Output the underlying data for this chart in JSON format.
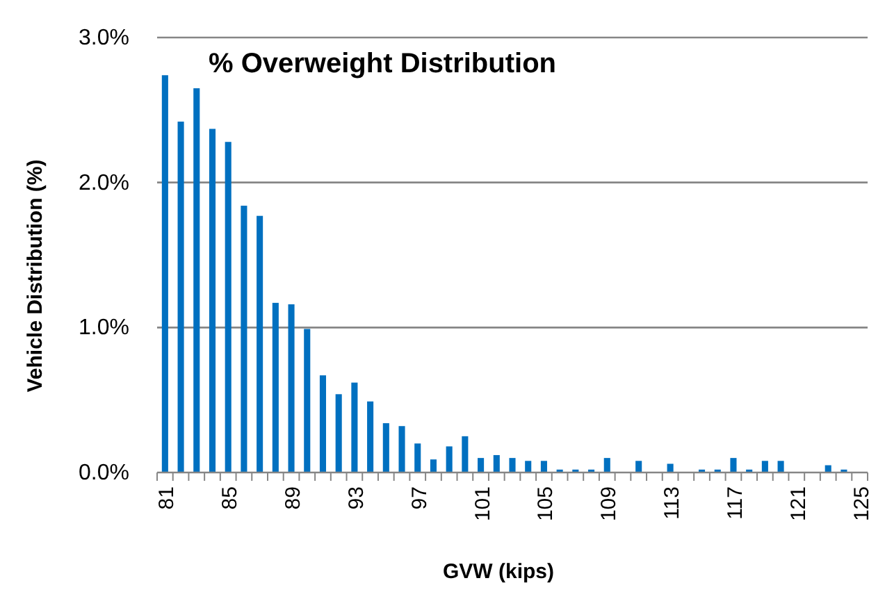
{
  "chart_data": {
    "type": "bar",
    "title": "% Overweight Distribution",
    "xlabel": "GVW (kips)",
    "ylabel": "Vehicle Distribution (%)",
    "categories": [
      "81",
      null,
      null,
      null,
      "85",
      null,
      null,
      null,
      "89",
      null,
      null,
      null,
      "93",
      null,
      null,
      null,
      "97",
      null,
      null,
      null,
      "101",
      null,
      null,
      null,
      "105",
      null,
      null,
      null,
      "109",
      null,
      null,
      null,
      "113",
      null,
      null,
      null,
      "117",
      null,
      null,
      null,
      "121",
      null,
      null,
      null,
      "125"
    ],
    "values": [
      2.74,
      2.42,
      2.65,
      2.37,
      2.28,
      1.84,
      1.77,
      1.17,
      1.16,
      0.99,
      0.67,
      0.54,
      0.62,
      0.49,
      0.34,
      0.32,
      0.2,
      0.09,
      0.18,
      0.25,
      0.1,
      0.12,
      0.1,
      0.08,
      0.08,
      0.02,
      0.02,
      0.02,
      0.1,
      0,
      0.08,
      0,
      0.06,
      0,
      0.02,
      0.02,
      0.1,
      0.02,
      0.08,
      0.08,
      0,
      0,
      0.05,
      0.02,
      0
    ],
    "color": "#0070c0",
    "ylim": [
      0,
      3
    ],
    "yticks": [
      {
        "value": 0,
        "label": "0.0%"
      },
      {
        "value": 1,
        "label": "1.0%"
      },
      {
        "value": 2,
        "label": "2.0%"
      },
      {
        "value": 3,
        "label": "3.0%"
      }
    ],
    "grid": "y"
  }
}
